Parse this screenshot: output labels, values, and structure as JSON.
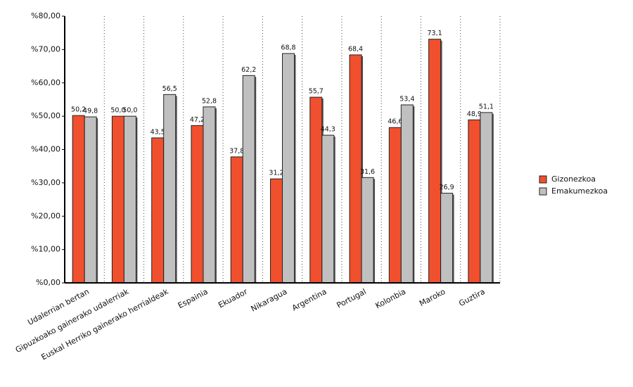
{
  "chart_data": {
    "type": "bar",
    "categories": [
      "Udalerrian bertan",
      "Gipuzkoako gainerako udalerriak",
      "Euskal Herriko gainerako herrialdeak",
      "Espainia",
      "Ekuador",
      "Nikaragua",
      "Argentina",
      "Portugal",
      "Kolonbia",
      "Maroko",
      "Guztira"
    ],
    "series": [
      {
        "name": "Gizonezkoa",
        "color": "#f0502e",
        "values": [
          50.2,
          50.0,
          43.5,
          47.2,
          37.8,
          31.2,
          55.7,
          68.4,
          46.6,
          73.1,
          48.9
        ],
        "value_labels": [
          "50,2",
          "50,0",
          "43,5",
          "47,2",
          "37,8",
          "31,2",
          "55,7",
          "68,4",
          "46,6",
          "73,1",
          "48,9"
        ]
      },
      {
        "name": "Emakumezkoa",
        "color": "#c0c0c0",
        "values": [
          49.8,
          50.0,
          56.5,
          52.8,
          62.2,
          68.8,
          44.3,
          31.6,
          53.4,
          26.9,
          51.1
        ],
        "value_labels": [
          "49,8",
          "50,0",
          "56,5",
          "52,8",
          "62,2",
          "68,8",
          "44,3",
          "31,6",
          "53,4",
          "26,9",
          "51,1"
        ]
      }
    ],
    "ylim": [
      0,
      80
    ],
    "yticks": [
      {
        "value": 0,
        "label": "%0,00"
      },
      {
        "value": 10,
        "label": "%10,00"
      },
      {
        "value": 20,
        "label": "%20,00"
      },
      {
        "value": 30,
        "label": "%30,00"
      },
      {
        "value": 40,
        "label": "%40,00"
      },
      {
        "value": 50,
        "label": "%50,00"
      },
      {
        "value": 60,
        "label": "%60,00"
      },
      {
        "value": 70,
        "label": "%70,00"
      },
      {
        "value": 80,
        "label": "%80,00"
      }
    ],
    "legend": "right"
  }
}
